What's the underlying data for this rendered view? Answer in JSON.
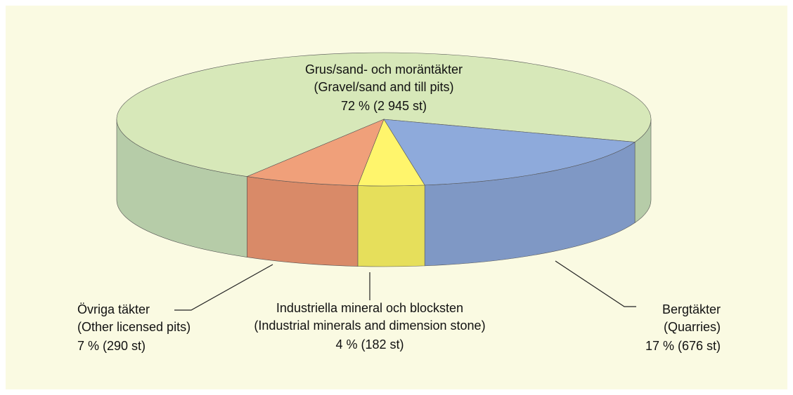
{
  "chart_data": {
    "type": "pie3d",
    "categories": [
      "Grus/sand- och moräntäkter",
      "Bergtäkter",
      "Industriella mineral och blocksten",
      "Övriga täkter"
    ],
    "categories_en": [
      "(Gravel/sand and till pits)",
      "(Quarries)",
      "(Industrial minerals and dimension stone)",
      "(Other licensed pits)"
    ],
    "values": [
      72,
      17,
      4,
      7
    ],
    "value_labels": [
      "72 % (2 945 st)",
      "17 % (676 st)",
      "4 % (182 st)",
      "7 % (290 st)"
    ],
    "colors": [
      "#d7e8b9",
      "#8eaadb",
      "#fff56c",
      "#f0a07a"
    ],
    "side_colors": [
      "#b6cca8",
      "#7f98c5",
      "#e6df5b",
      "#d98a68"
    ]
  }
}
